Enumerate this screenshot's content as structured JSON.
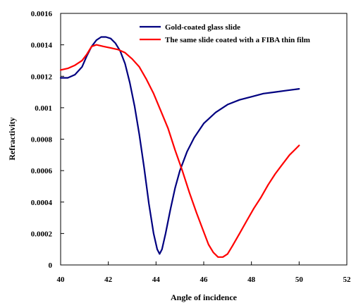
{
  "chart_data": {
    "type": "line",
    "title": "",
    "xlabel": "Angle of incidence",
    "ylabel": "Refractivity",
    "xlim": [
      40,
      52
    ],
    "ylim": [
      0,
      0.0016
    ],
    "xticks": [
      40,
      42,
      44,
      46,
      48,
      50,
      52
    ],
    "xtick_labels": [
      "40",
      "42",
      "44",
      "46",
      "48",
      "50",
      "52"
    ],
    "yticks": [
      0,
      0.0002,
      0.0004,
      0.0006,
      0.0008,
      0.001,
      0.0012,
      0.0014,
      0.0016
    ],
    "ytick_labels": [
      "0",
      "0.0002",
      "0.0004",
      "0.0006",
      "0.0008",
      "0.001",
      "0.0012",
      "0.0014",
      "0.0016"
    ],
    "grid": false,
    "legend_position": "top-right",
    "series": [
      {
        "name": "Gold-coated glass slide",
        "color": "#000080",
        "points": [
          [
            40.0,
            0.00119
          ],
          [
            40.3,
            0.00119
          ],
          [
            40.6,
            0.00121
          ],
          [
            40.9,
            0.00126
          ],
          [
            41.1,
            0.00133
          ],
          [
            41.3,
            0.00139
          ],
          [
            41.5,
            0.00143
          ],
          [
            41.7,
            0.00145
          ],
          [
            41.9,
            0.00145
          ],
          [
            42.1,
            0.00144
          ],
          [
            42.3,
            0.00141
          ],
          [
            42.5,
            0.00136
          ],
          [
            42.7,
            0.00128
          ],
          [
            42.9,
            0.00116
          ],
          [
            43.1,
            0.00101
          ],
          [
            43.3,
            0.00083
          ],
          [
            43.5,
            0.00062
          ],
          [
            43.7,
            0.00039
          ],
          [
            43.9,
            0.0002
          ],
          [
            44.05,
            0.0001
          ],
          [
            44.15,
            7e-05
          ],
          [
            44.25,
            0.0001
          ],
          [
            44.4,
            0.0002
          ],
          [
            44.6,
            0.00035
          ],
          [
            44.8,
            0.00049
          ],
          [
            45.0,
            0.0006
          ],
          [
            45.3,
            0.00072
          ],
          [
            45.6,
            0.00081
          ],
          [
            46.0,
            0.0009
          ],
          [
            46.5,
            0.00097
          ],
          [
            47.0,
            0.00102
          ],
          [
            47.5,
            0.00105
          ],
          [
            48.0,
            0.00107
          ],
          [
            48.5,
            0.00109
          ],
          [
            49.0,
            0.0011
          ],
          [
            49.5,
            0.00111
          ],
          [
            50.0,
            0.00112
          ]
        ]
      },
      {
        "name": "The same slide coated with a FIBA thin film",
        "color": "#ff0000",
        "points": [
          [
            40.0,
            0.00124
          ],
          [
            40.3,
            0.00125
          ],
          [
            40.6,
            0.00127
          ],
          [
            40.9,
            0.0013
          ],
          [
            41.1,
            0.00134
          ],
          [
            41.3,
            0.00139
          ],
          [
            41.5,
            0.0014
          ],
          [
            41.8,
            0.00139
          ],
          [
            42.1,
            0.00138
          ],
          [
            42.4,
            0.00137
          ],
          [
            42.7,
            0.00135
          ],
          [
            43.0,
            0.00131
          ],
          [
            43.3,
            0.00126
          ],
          [
            43.6,
            0.00118
          ],
          [
            43.9,
            0.00109
          ],
          [
            44.2,
            0.00098
          ],
          [
            44.5,
            0.00087
          ],
          [
            44.8,
            0.00073
          ],
          [
            45.1,
            0.0006
          ],
          [
            45.4,
            0.00046
          ],
          [
            45.7,
            0.00033
          ],
          [
            46.0,
            0.00021
          ],
          [
            46.2,
            0.00013
          ],
          [
            46.4,
            8e-05
          ],
          [
            46.6,
            5e-05
          ],
          [
            46.8,
            5e-05
          ],
          [
            47.0,
            7e-05
          ],
          [
            47.2,
            0.00012
          ],
          [
            47.5,
            0.0002
          ],
          [
            47.8,
            0.00028
          ],
          [
            48.1,
            0.00036
          ],
          [
            48.4,
            0.00043
          ],
          [
            48.7,
            0.00051
          ],
          [
            49.0,
            0.00058
          ],
          [
            49.3,
            0.00064
          ],
          [
            49.6,
            0.0007
          ],
          [
            49.8,
            0.00073
          ],
          [
            50.0,
            0.00076
          ]
        ]
      }
    ]
  }
}
